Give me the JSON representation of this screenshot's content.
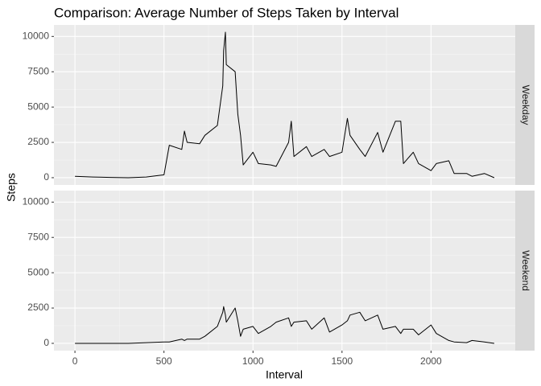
{
  "title": "Comparison: Average Number of Steps Taken by Interval",
  "x_label": "Interval",
  "y_label": "Steps",
  "chart_data": [
    {
      "type": "line",
      "facet": "Weekday",
      "color": "#000000",
      "x": [
        0,
        100,
        200,
        300,
        400,
        500,
        530,
        600,
        615,
        630,
        700,
        730,
        800,
        830,
        835,
        845,
        850,
        900,
        915,
        930,
        945,
        1000,
        1030,
        1100,
        1130,
        1200,
        1215,
        1230,
        1300,
        1330,
        1400,
        1430,
        1500,
        1530,
        1545,
        1600,
        1630,
        1700,
        1730,
        1800,
        1830,
        1845,
        1900,
        1930,
        2000,
        2030,
        2100,
        2130,
        2200,
        2230,
        2300,
        2355
      ],
      "values": [
        100,
        50,
        20,
        0,
        50,
        200,
        2300,
        2000,
        3300,
        2500,
        2400,
        3000,
        3700,
        6500,
        9000,
        10300,
        8000,
        7500,
        4500,
        3000,
        900,
        1800,
        1000,
        900,
        800,
        2500,
        4000,
        1500,
        2200,
        1500,
        2000,
        1500,
        1800,
        4200,
        3000,
        2000,
        1500,
        3200,
        1800,
        4000,
        4000,
        1000,
        1800,
        1000,
        500,
        1000,
        1200,
        300,
        300,
        100,
        300,
        0
      ],
      "xlim": [
        -118,
        2473
      ],
      "xticks": [
        0,
        500,
        1000,
        1500,
        2000
      ],
      "ylim": [
        -515,
        10815
      ],
      "yticks": [
        0,
        2500,
        5000,
        7500,
        10000
      ],
      "grid": true
    },
    {
      "type": "line",
      "facet": "Weekend",
      "color": "#000000",
      "x": [
        0,
        100,
        200,
        300,
        400,
        500,
        530,
        600,
        615,
        630,
        700,
        730,
        800,
        830,
        835,
        845,
        850,
        900,
        915,
        930,
        945,
        1000,
        1030,
        1100,
        1130,
        1200,
        1215,
        1230,
        1300,
        1330,
        1400,
        1430,
        1500,
        1530,
        1545,
        1600,
        1630,
        1700,
        1730,
        1800,
        1830,
        1845,
        1900,
        1930,
        2000,
        2030,
        2100,
        2130,
        2200,
        2230,
        2300,
        2355
      ],
      "values": [
        0,
        0,
        0,
        0,
        50,
        100,
        100,
        300,
        200,
        300,
        300,
        500,
        1200,
        2200,
        2600,
        2000,
        1500,
        2500,
        1600,
        500,
        1000,
        1200,
        700,
        1200,
        1500,
        1800,
        1200,
        1500,
        1600,
        1000,
        1800,
        800,
        1300,
        1600,
        2000,
        2200,
        1600,
        2000,
        1000,
        1200,
        700,
        1000,
        1000,
        600,
        1300,
        700,
        200,
        100,
        50,
        200,
        100,
        0
      ],
      "xlim": [
        -118,
        2473
      ],
      "xticks": [
        0,
        500,
        1000,
        1500,
        2000
      ],
      "ylim": [
        -515,
        10815
      ],
      "yticks": [
        0,
        2500,
        5000,
        7500,
        10000
      ],
      "grid": true
    }
  ]
}
